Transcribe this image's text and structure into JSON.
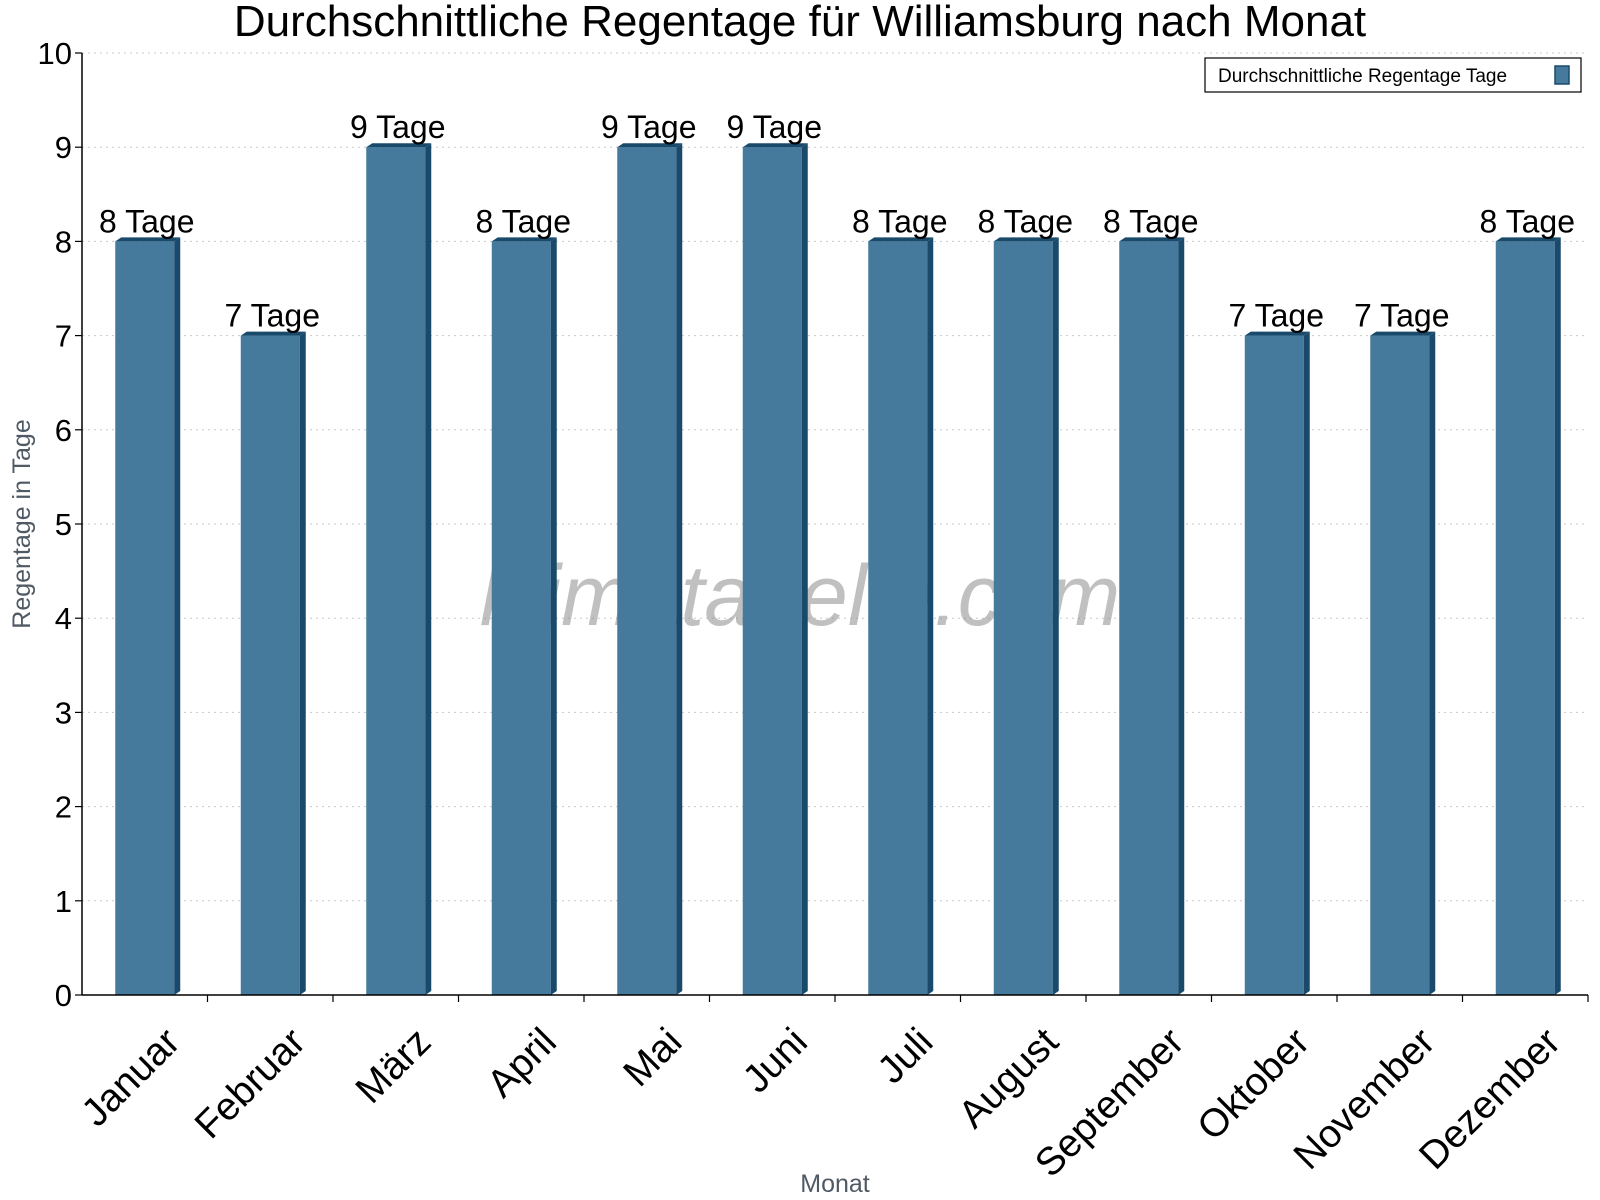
{
  "chart_data": {
    "type": "bar",
    "title": "Durchschnittliche Regentage für Williamsburg nach Monat",
    "xlabel": "Monat",
    "ylabel": "Regentage in Tage",
    "ylim": [
      0,
      10
    ],
    "yticks": [
      0,
      1,
      2,
      3,
      4,
      5,
      6,
      7,
      8,
      9,
      10
    ],
    "grid": "horizontal dotted",
    "legend_position": "top-right",
    "categories": [
      "Januar",
      "Februar",
      "März",
      "April",
      "Mai",
      "Juni",
      "Juli",
      "August",
      "September",
      "Oktober",
      "November",
      "Dezember"
    ],
    "series": [
      {
        "name": "Durchschnittliche Regentage Tage",
        "values": [
          8,
          7,
          9,
          8,
          9,
          9,
          8,
          8,
          8,
          7,
          7,
          8
        ],
        "data_labels": [
          "8 Tage",
          "7 Tage",
          "9 Tage",
          "8 Tage",
          "9 Tage",
          "9 Tage",
          "8 Tage",
          "8 Tage",
          "8 Tage",
          "7 Tage",
          "7 Tage",
          "8 Tage"
        ],
        "color": "#457a9c",
        "edge_color": "#1a4a6b"
      }
    ],
    "watermark": "klimatabelle.com"
  }
}
